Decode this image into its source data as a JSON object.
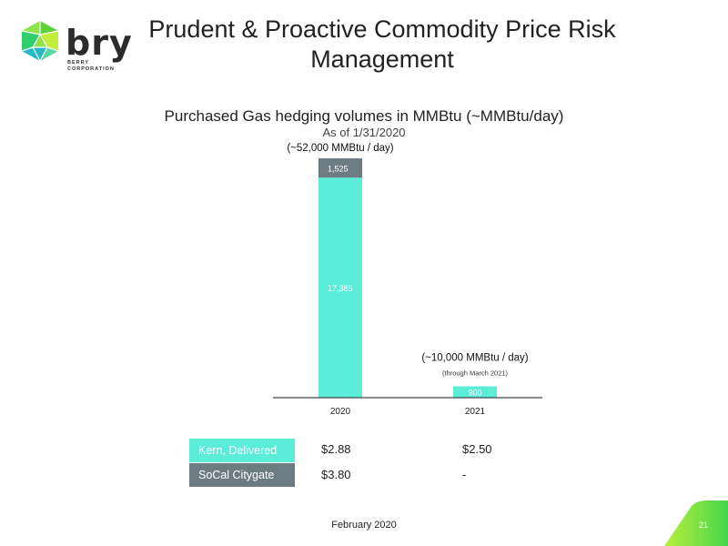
{
  "title_line1": "Prudent & Proactive Commodity Price Risk",
  "title_line2": "Management",
  "logo": {
    "word": "bry",
    "sub_line1": "BERRY",
    "sub_line2": "CORPORATION"
  },
  "colors": {
    "kern": "#5cedd9",
    "socal": "#6d7b83",
    "accent_green": "#7ed957"
  },
  "chart_data": {
    "type": "bar",
    "title": "Purchased Gas hedging volumes in MMBtu (~MMBtu/day)",
    "subtitle": "As of 1/31/2020",
    "categories": [
      "2020",
      "2021"
    ],
    "series": [
      {
        "name": "Kern, Delivered",
        "values": [
          17385,
          900
        ]
      },
      {
        "name": "SoCal Citygate",
        "values": [
          1525,
          0
        ]
      }
    ],
    "data_labels": [
      [
        "17,385",
        "900"
      ],
      [
        "1,525",
        ""
      ]
    ],
    "annotations": [
      {
        "category": "2020",
        "text": "(~52,000 MMBtu / day)",
        "note": ""
      },
      {
        "category": "2021",
        "text": "(~10,000 MMBtu / day)",
        "note": "(through March 2021)"
      }
    ],
    "ylim": [
      0,
      18910
    ],
    "legend": "table-below"
  },
  "price_table": {
    "rows": [
      {
        "label": "Kern, Delivered",
        "values": [
          "$2.88",
          "$2.50"
        ]
      },
      {
        "label": "SoCal Citygate",
        "values": [
          "$3.80",
          "-"
        ]
      }
    ]
  },
  "footer": "February 2020",
  "page_number": "21"
}
